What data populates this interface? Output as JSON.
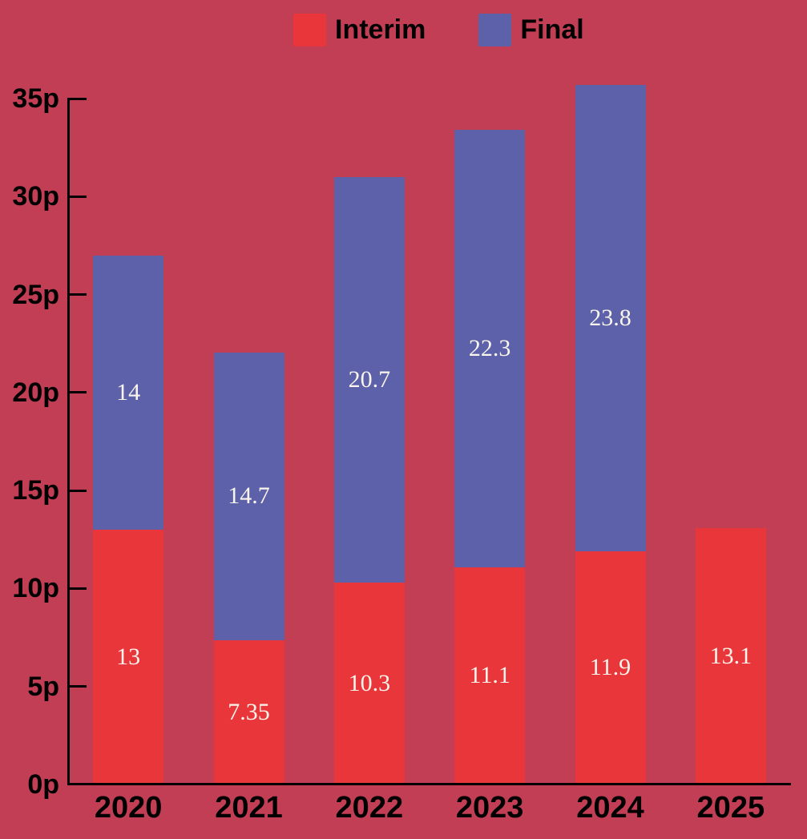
{
  "chart_data": {
    "type": "bar",
    "stacked": true,
    "title": "",
    "categories": [
      "2020",
      "2021",
      "2022",
      "2023",
      "2024",
      "2025"
    ],
    "series": [
      {
        "name": "Interim",
        "color": "#E9363B",
        "values": [
          13,
          7.35,
          10.3,
          11.1,
          11.9,
          13.1
        ],
        "labels": [
          "13",
          "7.35",
          "10.3",
          "11.1",
          "11.9",
          "13.1"
        ]
      },
      {
        "name": "Final",
        "color": "#5C61A9",
        "values": [
          14,
          14.7,
          20.7,
          22.3,
          23.8,
          null
        ],
        "labels": [
          "14",
          "14.7",
          "20.7",
          "22.3",
          "23.8",
          ""
        ]
      }
    ],
    "totals": [
      27,
      22.05,
      31,
      33.4,
      35.7,
      13.1
    ],
    "xlabel": "",
    "ylabel": "",
    "unit_suffix": "p",
    "ylim": [
      0,
      35
    ],
    "ytick_step": 5,
    "ytick_labels": [
      "0p",
      "5p",
      "10p",
      "15p",
      "20p",
      "25p",
      "30p",
      "35p"
    ],
    "legend_position": "top",
    "legend_entries": [
      "Interim",
      "Final"
    ],
    "grid": false
  },
  "colors": {
    "background": "#C23E55",
    "axis": "#000000",
    "label_text": "#000000",
    "value_text": "#F9F5EC",
    "interim": "#E9363B",
    "final": "#5C61A9"
  }
}
